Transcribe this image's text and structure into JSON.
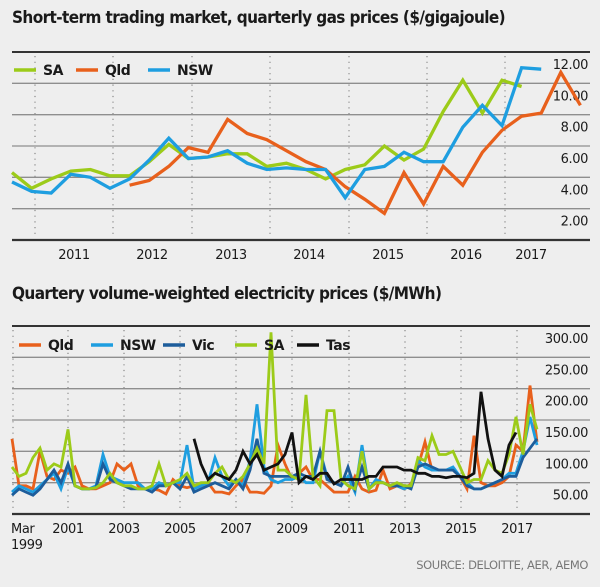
{
  "source": "SOURCE: DELOITTE, AER, AEMO",
  "chart_data": [
    {
      "type": "line",
      "title": "Short-term trading market, quarterly gas prices ($/gigajoule)",
      "xlabel": "",
      "ylabel": "$/gigajoule",
      "ylim": [
        0,
        12
      ],
      "yticks": [
        2,
        4,
        6,
        8,
        10,
        12
      ],
      "ytick_labels": [
        "2.00",
        "4.00",
        "6.00",
        "8.00",
        "10.00",
        "12.00"
      ],
      "x_start": "Q3 2010",
      "x_labels": [
        "2011",
        "2012",
        "2013",
        "2014",
        "2015",
        "2016",
        "2017"
      ],
      "grid": true,
      "legend_position": "top-left",
      "series": [
        {
          "name": "SA",
          "color": "#9ccb19",
          "start_index": 0,
          "values": [
            4.3,
            3.3,
            3.9,
            4.4,
            4.5,
            4.1,
            4.1,
            5.0,
            6.1,
            5.2,
            5.3,
            5.5,
            5.5,
            4.7,
            4.9,
            4.5,
            3.9,
            4.5,
            4.8,
            6.0,
            5.1,
            5.8,
            8.2,
            10.2,
            8.1,
            10.2,
            9.8
          ]
        },
        {
          "name": "Qld",
          "color": "#e8601c",
          "start_index": 6,
          "values": [
            3.5,
            3.8,
            4.7,
            5.9,
            5.6,
            7.7,
            6.8,
            6.4,
            5.7,
            5.0,
            4.5,
            3.4,
            2.6,
            1.7,
            4.3,
            2.3,
            4.7,
            3.5,
            5.6,
            7.0,
            7.9,
            8.1,
            10.7,
            8.6
          ]
        },
        {
          "name": "NSW",
          "color": "#1e9ee0",
          "start_index": 0,
          "values": [
            3.7,
            3.1,
            3.0,
            4.2,
            4.0,
            3.3,
            3.9,
            5.1,
            6.5,
            5.2,
            5.3,
            5.7,
            4.9,
            4.5,
            4.6,
            4.5,
            4.5,
            2.7,
            4.5,
            4.7,
            5.6,
            5.0,
            5.0,
            7.2,
            8.6,
            7.3,
            11.0,
            10.9
          ]
        }
      ]
    },
    {
      "type": "line",
      "title": "Quartery volume-weighted electricity prices ($/MWh)",
      "xlabel": "",
      "ylabel": "$/MWh",
      "ylim": [
        0,
        300
      ],
      "yticks": [
        50,
        100,
        150,
        200,
        250,
        300
      ],
      "ytick_labels": [
        "50.00",
        "100.00",
        "150.00",
        "200.00",
        "250.00",
        "300.00"
      ],
      "x_start": "Mar 1999",
      "x_labels": [
        "Mar 1999",
        "2001",
        "2003",
        "2005",
        "2007",
        "2009",
        "2011",
        "2013",
        "2015",
        "2017"
      ],
      "grid": true,
      "legend_position": "top-left",
      "series": [
        {
          "name": "Qld",
          "color": "#e8601c",
          "start_index": 0,
          "values": [
            120,
            45,
            45,
            40,
            100,
            60,
            55,
            70,
            65,
            75,
            45,
            40,
            40,
            45,
            50,
            80,
            70,
            80,
            45,
            40,
            40,
            38,
            32,
            55,
            45,
            42,
            45,
            45,
            50,
            35,
            35,
            32,
            45,
            55,
            35,
            35,
            33,
            45,
            110,
            80,
            55,
            65,
            75,
            55,
            55,
            45,
            35,
            35,
            35,
            60,
            40,
            35,
            38,
            70,
            40,
            45,
            40,
            48,
            75,
            115,
            70,
            70,
            70,
            70,
            60,
            40,
            125,
            50,
            45,
            45,
            50,
            60,
            110,
            100,
            205,
            115
          ]
        },
        {
          "name": "NSW",
          "color": "#1e9ee0",
          "start_index": 0,
          "values": [
            35,
            45,
            40,
            35,
            45,
            55,
            65,
            40,
            75,
            45,
            40,
            40,
            45,
            95,
            60,
            55,
            50,
            50,
            50,
            40,
            40,
            50,
            45,
            50,
            50,
            110,
            40,
            45,
            50,
            90,
            60,
            45,
            55,
            45,
            85,
            175,
            75,
            55,
            50,
            55,
            55,
            60,
            50,
            50,
            100,
            60,
            50,
            45,
            60,
            35,
            110,
            40,
            55,
            50,
            45,
            45,
            40,
            45,
            85,
            75,
            70,
            70,
            70,
            75,
            60,
            50,
            40,
            40,
            45,
            50,
            55,
            65,
            65,
            100,
            155,
            110
          ]
        },
        {
          "name": "Vic",
          "color": "#1d5d9b",
          "start_index": 0,
          "values": [
            30,
            40,
            35,
            30,
            40,
            55,
            70,
            50,
            80,
            45,
            40,
            40,
            42,
            80,
            55,
            50,
            45,
            40,
            40,
            40,
            35,
            45,
            45,
            50,
            40,
            60,
            35,
            40,
            45,
            50,
            45,
            40,
            55,
            40,
            70,
            120,
            65,
            60,
            60,
            60,
            60,
            65,
            60,
            60,
            100,
            55,
            50,
            45,
            75,
            40,
            75,
            40,
            50,
            50,
            45,
            45,
            45,
            40,
            75,
            80,
            75,
            70,
            70,
            70,
            60,
            45,
            40,
            40,
            45,
            50,
            55,
            60,
            60,
            90,
            105,
            120
          ]
        },
        {
          "name": "SA",
          "color": "#9ccb19",
          "start_index": 0,
          "values": [
            75,
            60,
            65,
            90,
            105,
            70,
            80,
            75,
            135,
            45,
            40,
            40,
            42,
            50,
            65,
            50,
            45,
            45,
            40,
            40,
            45,
            80,
            45,
            50,
            55,
            65,
            45,
            50,
            50,
            65,
            75,
            55,
            50,
            60,
            80,
            105,
            80,
            290,
            70,
            70,
            60,
            55,
            190,
            60,
            45,
            165,
            165,
            55,
            45,
            40,
            100,
            40,
            50,
            50,
            45,
            50,
            45,
            45,
            90,
            85,
            125,
            95,
            95,
            100,
            75,
            50,
            55,
            55,
            85,
            70,
            65,
            95,
            155,
            95,
            175,
            135
          ]
        },
        {
          "name": "Tas",
          "color": "#111111",
          "start_index": 26,
          "values": [
            120,
            80,
            55,
            65,
            60,
            55,
            70,
            100,
            80,
            95,
            70,
            75,
            80,
            95,
            130,
            50,
            60,
            55,
            65,
            65,
            48,
            55,
            55,
            55,
            55,
            60,
            60,
            75,
            75,
            75,
            70,
            70,
            65,
            65,
            60,
            60,
            58,
            60,
            60,
            58,
            65,
            195,
            120,
            70,
            60,
            110,
            130
          ]
        }
      ]
    }
  ]
}
